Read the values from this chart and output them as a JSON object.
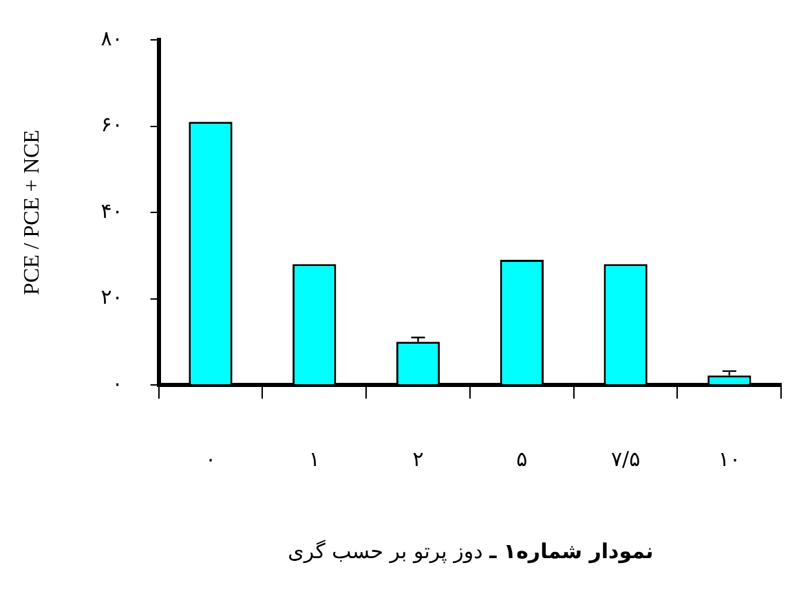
{
  "chart_data": {
    "type": "bar",
    "title": "نمودار شماره۱ ـ",
    "subtitle": "دوز پرتو بر حسب گری",
    "ylabel": "PCE / PCE + NCE",
    "categories": [
      "۰",
      "۱",
      "۲",
      "۵",
      "۷/۵",
      "۱۰"
    ],
    "values": [
      61,
      28,
      10,
      29,
      28,
      2.2
    ],
    "errors": [
      null,
      null,
      [
        10,
        11
      ],
      null,
      null,
      [
        2.2,
        3.2
      ]
    ],
    "color": "#00ffff",
    "ylim": [
      0,
      80
    ],
    "yticks": [
      {
        "value": 0,
        "label": "۰"
      },
      {
        "value": 20,
        "label": "۲۰"
      },
      {
        "value": 40,
        "label": "۴۰"
      },
      {
        "value": 60,
        "label": "۶۰"
      },
      {
        "value": 80,
        "label": "۸۰"
      }
    ],
    "grid": false,
    "legend": false
  }
}
